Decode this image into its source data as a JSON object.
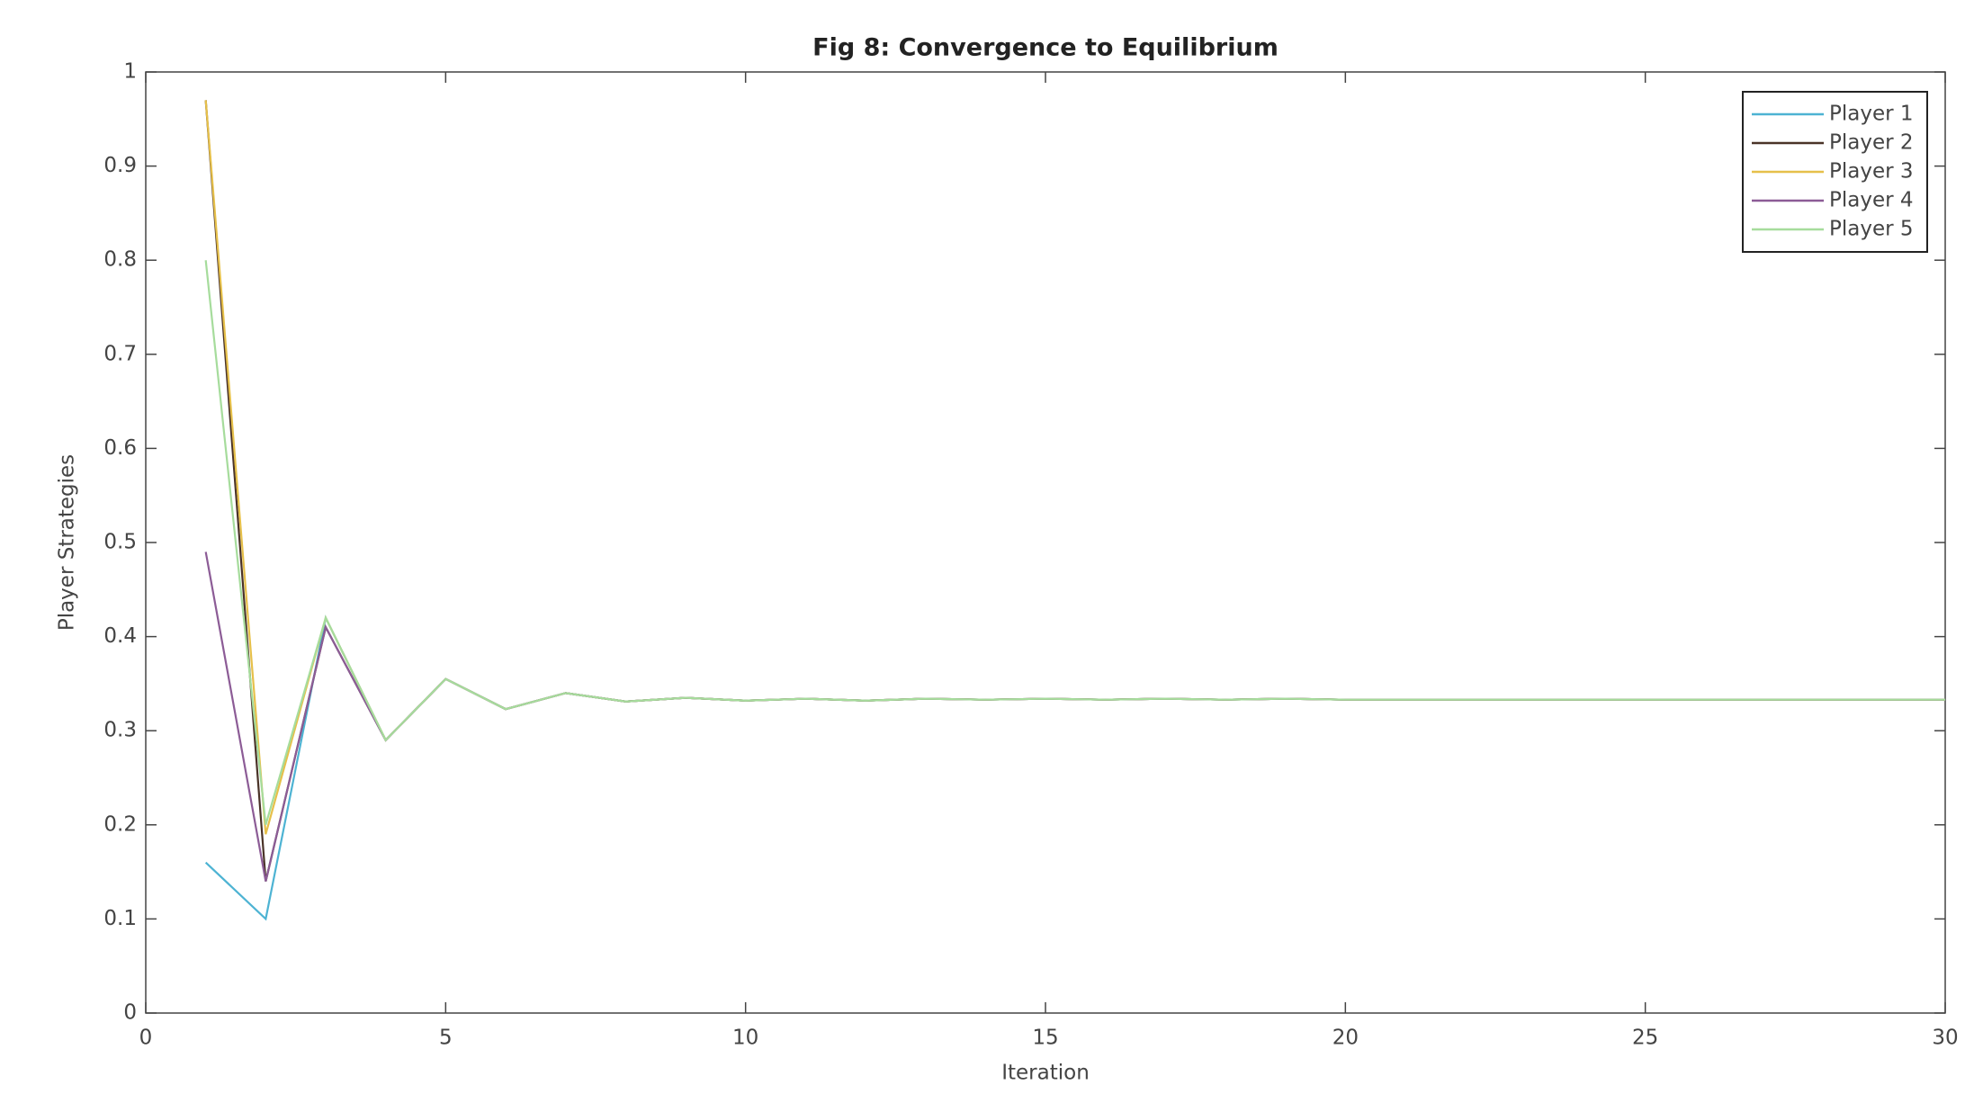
{
  "chart_data": {
    "type": "line",
    "title": "Fig 8: Convergence to Equilibrium",
    "x_label": "Iteration",
    "y_label": "Player Strategies",
    "x": [
      1,
      2,
      3,
      4,
      5,
      6,
      7,
      8,
      9,
      10,
      11,
      12,
      13,
      14,
      15,
      16,
      17,
      18,
      19,
      20,
      21,
      22,
      23,
      24,
      25,
      26,
      27,
      28,
      29,
      30
    ],
    "series": [
      {
        "name": "Player 1",
        "color": "#4db3d3",
        "values": [
          0.16,
          0.1,
          0.42,
          0.29,
          0.355,
          0.323,
          0.34,
          0.331,
          0.335,
          0.332,
          0.334,
          0.332,
          0.334,
          0.333,
          0.334,
          0.333,
          0.334,
          0.333,
          0.334,
          0.333,
          0.333,
          0.333,
          0.333,
          0.333,
          0.333,
          0.333,
          0.333,
          0.333,
          0.333,
          0.333
        ]
      },
      {
        "name": "Player 2",
        "color": "#4a3328",
        "values": [
          0.97,
          0.14,
          0.41,
          0.29,
          0.355,
          0.323,
          0.34,
          0.331,
          0.335,
          0.332,
          0.334,
          0.332,
          0.334,
          0.333,
          0.334,
          0.333,
          0.334,
          0.333,
          0.334,
          0.333,
          0.333,
          0.333,
          0.333,
          0.333,
          0.333,
          0.333,
          0.333,
          0.333,
          0.333,
          0.333
        ]
      },
      {
        "name": "Player 3",
        "color": "#e6c04a",
        "values": [
          0.97,
          0.19,
          0.42,
          0.29,
          0.355,
          0.323,
          0.34,
          0.331,
          0.335,
          0.332,
          0.334,
          0.332,
          0.334,
          0.333,
          0.334,
          0.333,
          0.334,
          0.333,
          0.334,
          0.333,
          0.333,
          0.333,
          0.333,
          0.333,
          0.333,
          0.333,
          0.333,
          0.333,
          0.333,
          0.333
        ]
      },
      {
        "name": "Player 4",
        "color": "#8c5c96",
        "values": [
          0.49,
          0.14,
          0.41,
          0.29,
          0.355,
          0.323,
          0.34,
          0.331,
          0.335,
          0.332,
          0.334,
          0.332,
          0.334,
          0.333,
          0.334,
          0.333,
          0.334,
          0.333,
          0.334,
          0.333,
          0.333,
          0.333,
          0.333,
          0.333,
          0.333,
          0.333,
          0.333,
          0.333,
          0.333,
          0.333
        ]
      },
      {
        "name": "Player 5",
        "color": "#a6dc9c",
        "values": [
          0.8,
          0.2,
          0.42,
          0.29,
          0.355,
          0.323,
          0.34,
          0.331,
          0.335,
          0.332,
          0.334,
          0.332,
          0.334,
          0.333,
          0.334,
          0.333,
          0.334,
          0.333,
          0.334,
          0.333,
          0.333,
          0.333,
          0.333,
          0.333,
          0.333,
          0.333,
          0.333,
          0.333,
          0.333,
          0.333
        ]
      }
    ],
    "xlim": [
      0,
      30
    ],
    "xticks": [
      0,
      5,
      10,
      15,
      20,
      25,
      30
    ],
    "ylim": [
      0,
      1
    ],
    "yticks": [
      0,
      0.1,
      0.2,
      0.3,
      0.4,
      0.5,
      0.6,
      0.7,
      0.8,
      0.9,
      1
    ],
    "legend": "upper right"
  }
}
